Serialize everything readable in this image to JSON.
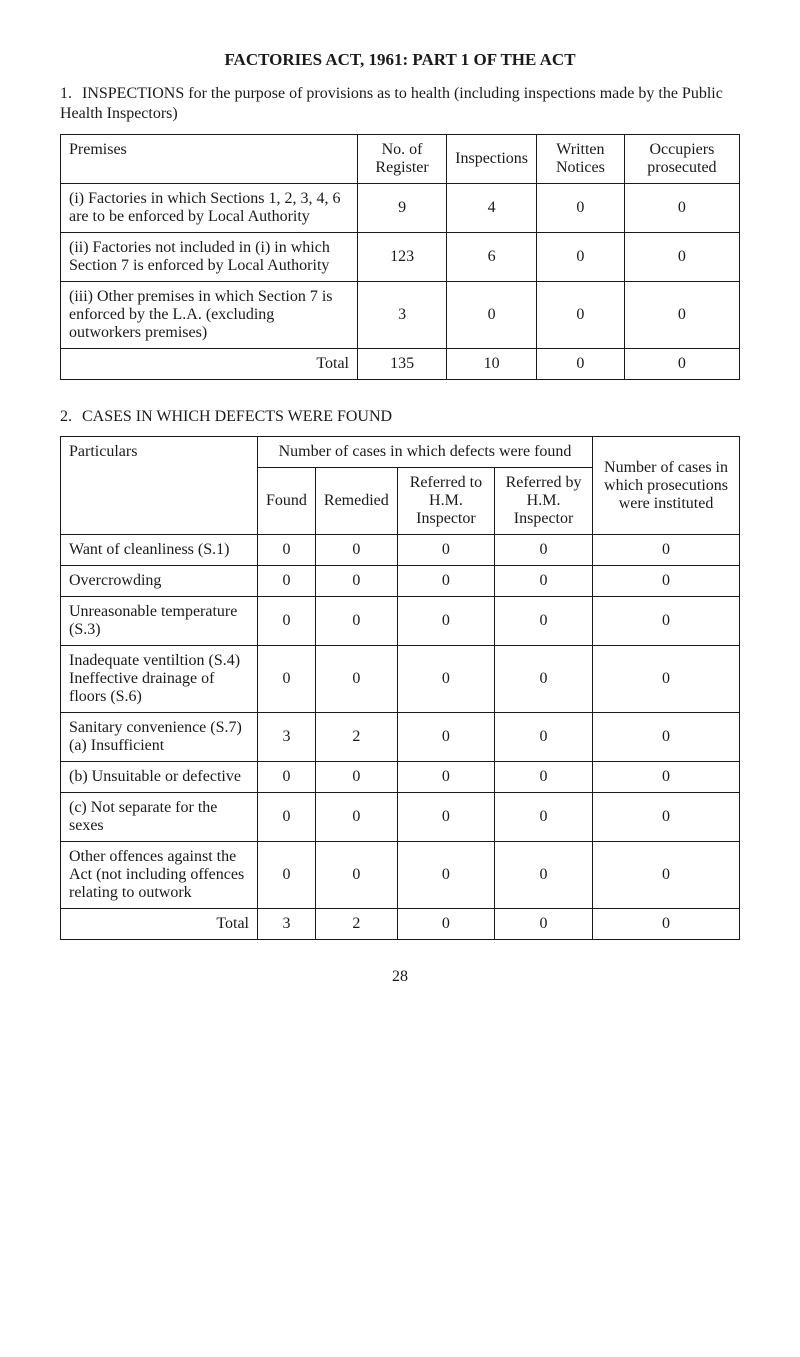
{
  "title": "FACTORIES ACT, 1961: PART 1 OF THE ACT",
  "section1": {
    "num": "1.",
    "text": "INSPECTIONS for the purpose of provisions as to health (including inspections made by the Public Health Inspectors)"
  },
  "table1": {
    "headers": {
      "premises": "Premises",
      "register": "No. of Register",
      "inspections": "Inspections",
      "written": "Written Notices",
      "occupiers": "Occupiers prosecuted"
    },
    "rows": [
      {
        "label": "(i) Factories in which Sections 1, 2, 3, 4, 6 are to be enforced by Local Authority",
        "register": "9",
        "inspections": "4",
        "written": "0",
        "occupiers": "0"
      },
      {
        "label": "(ii) Factories not included in (i) in which Section 7 is enforced by Local Authority",
        "register": "123",
        "inspections": "6",
        "written": "0",
        "occupiers": "0"
      },
      {
        "label": "(iii) Other premises in which Section 7 is enforced by the L.A. (excluding outworkers premises)",
        "register": "3",
        "inspections": "0",
        "written": "0",
        "occupiers": "0"
      }
    ],
    "total": {
      "label": "Total",
      "register": "135",
      "inspections": "10",
      "written": "0",
      "occupiers": "0"
    }
  },
  "section2": {
    "num": "2.",
    "text": "CASES IN WHICH DEFECTS WERE FOUND"
  },
  "table2": {
    "headers": {
      "particulars": "Particulars",
      "group": "Number of cases in which defects were found",
      "found": "Found",
      "remedied": "Remedied",
      "referred_to": "Referred to H.M. Inspector",
      "referred_by": "Referred by H.M. Inspector",
      "number": "Number of cases in which prosecutions were instituted"
    },
    "rows": [
      {
        "label": "Want of cleanliness (S.1)",
        "found": "0",
        "remedied": "0",
        "referred_to": "0",
        "referred_by": "0",
        "number": "0"
      },
      {
        "label": "Overcrowding",
        "found": "0",
        "remedied": "0",
        "referred_to": "0",
        "referred_by": "0",
        "number": "0"
      },
      {
        "label": "Unreasonable tem­perature (S.3)",
        "found": "0",
        "remedied": "0",
        "referred_to": "0",
        "referred_by": "0",
        "number": "0"
      },
      {
        "label": "Inadequate ventil­tion (S.4) Ineffective drainage of floors (S.6)",
        "found": "0",
        "remedied": "0",
        "referred_to": "0",
        "referred_by": "0",
        "number": "0"
      },
      {
        "label": "Sanitary convenience (S.7)\n(a) Insufficient",
        "found": "3",
        "remedied": "2",
        "referred_to": "0",
        "referred_by": "0",
        "number": "0"
      },
      {
        "label": "(b) Unsuitable or defective",
        "found": "0",
        "remedied": "0",
        "referred_to": "0",
        "referred_by": "0",
        "number": "0"
      },
      {
        "label": "(c) Not separate for the sexes",
        "found": "0",
        "remedied": "0",
        "referred_to": "0",
        "referred_by": "0",
        "number": "0"
      },
      {
        "label": "Other offences against the Act (not including offences relating to outwork",
        "found": "0",
        "remedied": "0",
        "referred_to": "0",
        "referred_by": "0",
        "number": "0"
      }
    ],
    "total": {
      "label": "Total",
      "found": "3",
      "remedied": "2",
      "referred_to": "0",
      "referred_by": "0",
      "number": "0"
    }
  },
  "page_number": "28"
}
